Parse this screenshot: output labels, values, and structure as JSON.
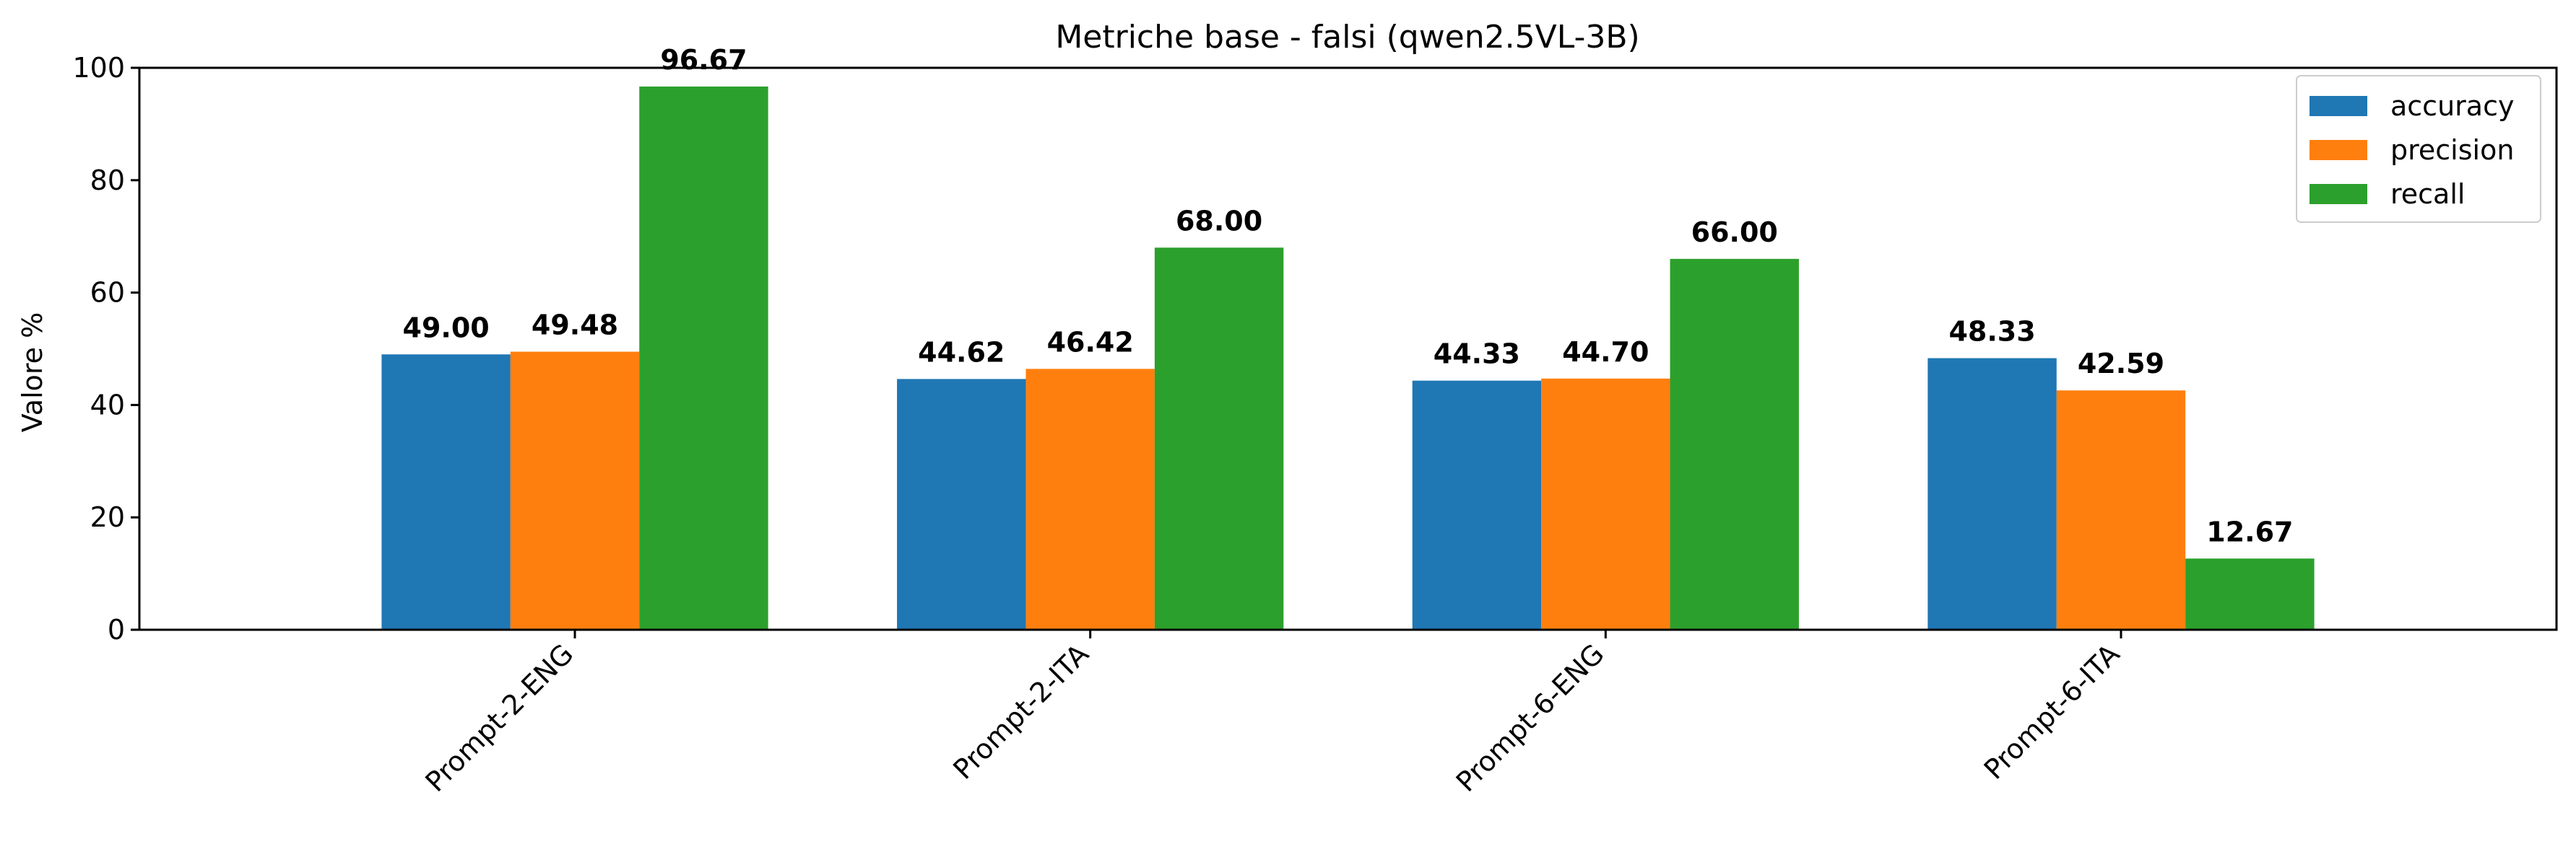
{
  "chart_data": {
    "type": "bar",
    "title": "Metriche base - falsi (qwen2.5VL-3B)",
    "xlabel": "",
    "ylabel": "Valore %",
    "ylim": [
      0,
      100
    ],
    "yticks": [
      "0",
      "20",
      "40",
      "60",
      "80",
      "100"
    ],
    "categories": [
      "Prompt-2-ENG",
      "Prompt-2-ITA",
      "Prompt-6-ENG",
      "Prompt-6-ITA"
    ],
    "series": [
      {
        "name": "accuracy",
        "color": "#1f77b4",
        "values": [
          49.0,
          44.62,
          44.33,
          48.33
        ],
        "labels": [
          "49.00",
          "44.62",
          "44.33",
          "48.33"
        ]
      },
      {
        "name": "precision",
        "color": "#ff7f0e",
        "values": [
          49.48,
          46.42,
          44.7,
          42.59
        ],
        "labels": [
          "49.48",
          "46.42",
          "44.70",
          "42.59"
        ]
      },
      {
        "name": "recall",
        "color": "#2ca02c",
        "values": [
          96.67,
          68.0,
          66.0,
          12.67
        ],
        "labels": [
          "96.67",
          "68.00",
          "66.00",
          "12.67"
        ]
      }
    ],
    "grid": false,
    "legend_position": "top-right"
  }
}
